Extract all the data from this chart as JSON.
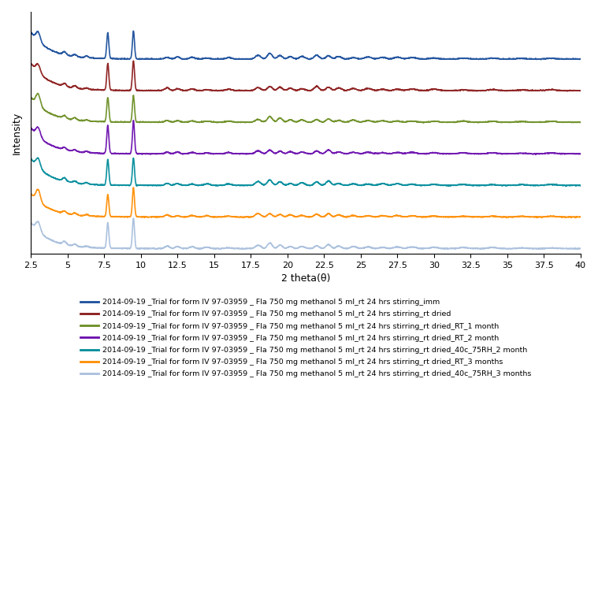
{
  "x_min": 2.5,
  "x_max": 40.0,
  "x_ticks": [
    2.5,
    5,
    7.5,
    10,
    12.5,
    15,
    17.5,
    20,
    22.5,
    25,
    27.5,
    30,
    32.5,
    35,
    37.5,
    40
  ],
  "xlabel": "2 theta(θ)",
  "ylabel": "Intensity",
  "colors": [
    "#1B4F9C",
    "#8B1A1A",
    "#6B8E23",
    "#6A0DAD",
    "#008B9B",
    "#FF8C00",
    "#A8BFDD"
  ],
  "labels": [
    "2014-09-19 _Trial for form IV 97-03959 _ Fla 750 mg methanol 5 ml_rt 24 hrs stirring_imm",
    "2014-09-19 _Trial for form IV 97-03959 _ Fla 750 mg methanol 5 ml_rt 24 hrs stirring_rt dried",
    "2014-09-19 _Trial for form IV 97-03959 _ Fla 750 mg methanol 5 ml_rt 24 hrs stirring_rt dried_RT_1 month",
    "2014-09-19 _Trial for form IV 97-03959 _ Fla 750 mg methanol 5 ml_rt 24 hrs stirring_rt dried_RT_2 month",
    "2014-09-19 _Trial for form IV 97-03959 _ Fla 750 mg methanol 5 ml_rt 24 hrs stirring_rt dried_40c_75RH_2 month",
    "2014-09-19 _Trial for form IV 97-03959 _ Fla 750 mg methanol 5 ml_rt 24 hrs stirring_rt dried_RT_3 months",
    "2014-09-19 _Trial for form IV 97-03959 _ Fla 750 mg methanol 5 ml_rt 24 hrs stirring_rt dried_40c_75RH_3 months"
  ],
  "offsets": [
    6.0,
    5.0,
    4.0,
    3.0,
    2.0,
    1.0,
    0.0
  ],
  "background_color": "#FFFFFF",
  "line_width": 1.2,
  "figsize": [
    7.59,
    7.59
  ],
  "dpi": 100
}
